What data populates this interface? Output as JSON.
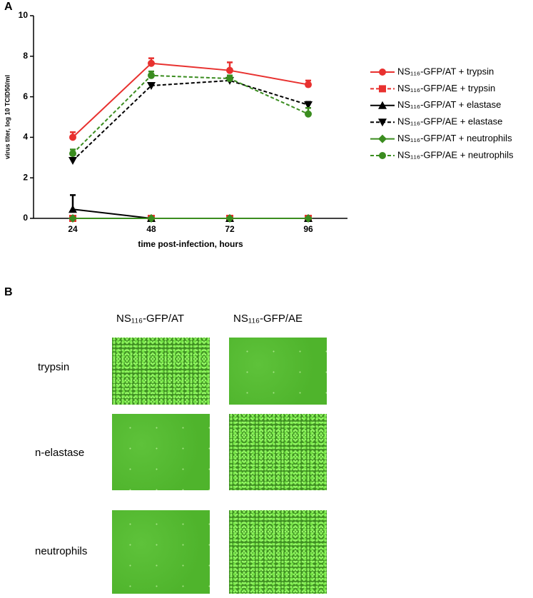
{
  "panel_labels": [
    "A",
    "B"
  ],
  "chart_data": {
    "type": "line",
    "xlabel": "time post-infection, hours",
    "ylabel": "virus titer, log 10 TCID50/ml",
    "x": [
      24,
      48,
      72,
      96
    ],
    "xlim": [
      12,
      108
    ],
    "xticks": [
      24,
      48,
      72,
      96
    ],
    "ylim": [
      0,
      10
    ],
    "yticks": [
      0,
      2,
      4,
      6,
      8,
      10
    ],
    "series": [
      {
        "name": "NS₁₁₆-GFP/AT + trypsin",
        "color": "#e8312f",
        "linestyle": "solid",
        "marker": "circle",
        "values": [
          4.0,
          7.65,
          7.3,
          6.6
        ],
        "errors": [
          0.25,
          0.25,
          0.4,
          0.2
        ]
      },
      {
        "name": "NS₁₁₆-GFP/AE + trypsin",
        "color": "#e8312f",
        "linestyle": "dashed",
        "marker": "square",
        "values": [
          0,
          0,
          0,
          0
        ],
        "errors": [
          0,
          0,
          0,
          0
        ]
      },
      {
        "name": "NS₁₁₆-GFP/AT + elastase",
        "color": "#000000",
        "linestyle": "solid",
        "marker": "triangle",
        "values": [
          0.45,
          0,
          0,
          0
        ],
        "errors": [
          0.7,
          0,
          0,
          0
        ]
      },
      {
        "name": "NS₁₁₆-GFP/AE + elastase",
        "color": "#000000",
        "linestyle": "dashed",
        "marker": "triangle-down",
        "values": [
          2.85,
          6.55,
          6.8,
          5.6
        ],
        "errors": [
          0.1,
          0.1,
          0.1,
          0.15
        ]
      },
      {
        "name": "NS₁₁₆-GFP/AT + neutrophils",
        "color": "#3a8c1f",
        "linestyle": "solid",
        "marker": "diamond",
        "values": [
          0,
          0,
          0,
          0
        ],
        "errors": [
          0,
          0,
          0,
          0
        ]
      },
      {
        "name": "NS₁₁₆-GFP/AE + neutrophils",
        "color": "#3a8c1f",
        "linestyle": "dashed",
        "marker": "circle",
        "values": [
          3.2,
          7.05,
          6.9,
          5.15
        ],
        "errors": [
          0.2,
          0.2,
          0.15,
          0.3
        ]
      }
    ]
  },
  "panel_b": {
    "columns": [
      "NS₁₁₆-GFP/AT",
      "NS₁₁₆-GFP/AE"
    ],
    "rows": [
      "trypsin",
      "n-elastase",
      "neutrophils"
    ]
  }
}
